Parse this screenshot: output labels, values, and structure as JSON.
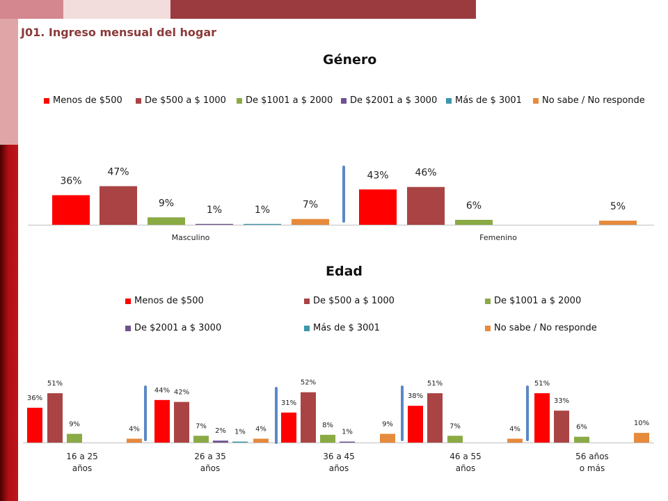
{
  "slide_title": "J01. Ingreso mensual del hogar",
  "colors": {
    "topbar": [
      "#d4878f",
      "#f2dcdc",
      "#9b3b3f"
    ],
    "sidebar_upper": "#e0a5a7",
    "sidebar_lower": "#b10f16",
    "separator": "#5b88c5"
  },
  "series": [
    {
      "name": "Menos de $500",
      "color": "#ff0000"
    },
    {
      "name": "De $500 a $ 1000",
      "color": "#aa4444"
    },
    {
      "name": "De $1001 a $ 2000",
      "color": "#8aaa44"
    },
    {
      "name": "De $2001 a $ 3000",
      "color": "#6f5190"
    },
    {
      "name": "Más de $ 3001",
      "color": "#3d97ac"
    },
    {
      "name": "No sabe / No responde",
      "color": "#e68a3c"
    }
  ],
  "chart_data": [
    {
      "type": "bar",
      "title": "Género",
      "legend_position": "top",
      "categories": [
        "Masculino",
        "Femenino"
      ],
      "series_values": [
        [
          36,
          47,
          9,
          1,
          1,
          7
        ],
        [
          43,
          46,
          6,
          null,
          null,
          5
        ]
      ],
      "data_labels": [
        [
          "36%",
          "47%",
          "9%",
          "1%",
          "1%",
          "7%"
        ],
        [
          "43%",
          "46%",
          "6%",
          "",
          "",
          "5%"
        ]
      ]
    },
    {
      "type": "bar",
      "title": "Edad",
      "legend_position": "top",
      "categories": [
        "16 a 25\naños",
        "26 a 35\naños",
        "36 a 45\naños",
        "46 a 55\naños",
        "56 años\no más"
      ],
      "series_values": [
        [
          36,
          51,
          9,
          null,
          null,
          4
        ],
        [
          44,
          42,
          7,
          2,
          1,
          4
        ],
        [
          31,
          52,
          8,
          1,
          null,
          9
        ],
        [
          38,
          51,
          7,
          null,
          null,
          4
        ],
        [
          51,
          33,
          6,
          null,
          null,
          10
        ]
      ],
      "data_labels": [
        [
          "36%",
          "51%",
          "9%",
          "",
          "",
          "4%"
        ],
        [
          "44%",
          "42%",
          "7%",
          "2%",
          "1%",
          "4%"
        ],
        [
          "31%",
          "52%",
          "8%",
          "1%",
          "",
          "9%"
        ],
        [
          "38%",
          "51%",
          "7%",
          "",
          "",
          "4%"
        ],
        [
          "51%",
          "33%",
          "6%",
          "",
          "",
          "10%"
        ]
      ]
    }
  ]
}
